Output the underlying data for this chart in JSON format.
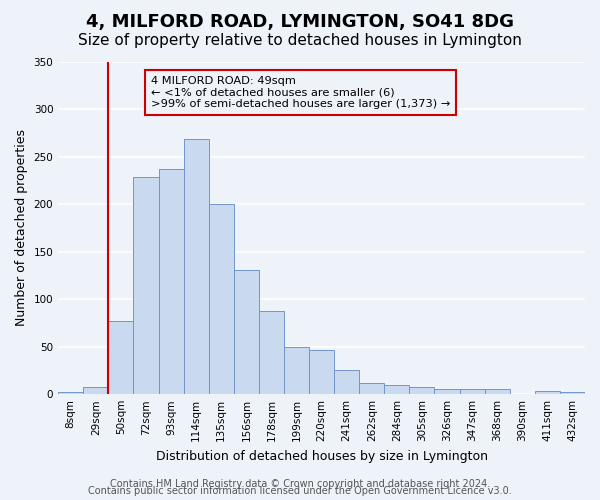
{
  "title": "4, MILFORD ROAD, LYMINGTON, SO41 8DG",
  "subtitle": "Size of property relative to detached houses in Lymington",
  "xlabel": "Distribution of detached houses by size in Lymington",
  "ylabel": "Number of detached properties",
  "bar_labels": [
    "8sqm",
    "29sqm",
    "50sqm",
    "72sqm",
    "93sqm",
    "114sqm",
    "135sqm",
    "156sqm",
    "178sqm",
    "199sqm",
    "220sqm",
    "241sqm",
    "262sqm",
    "284sqm",
    "305sqm",
    "326sqm",
    "347sqm",
    "368sqm",
    "390sqm",
    "411sqm",
    "432sqm"
  ],
  "bar_heights": [
    2,
    8,
    77,
    228,
    237,
    268,
    200,
    131,
    87,
    50,
    46,
    25,
    12,
    10,
    8,
    5,
    5,
    5,
    0,
    3,
    2
  ],
  "bar_color": "#c9d9f0",
  "bar_edge_color": "#7096c8",
  "vline_x_index": 2,
  "vline_color": "#cc0000",
  "annotation_title": "4 MILFORD ROAD: 49sqm",
  "annotation_line1": "← <1% of detached houses are smaller (6)",
  "annotation_line2": ">99% of semi-detached houses are larger (1,373) →",
  "annotation_box_edge": "#cc0000",
  "ylim": [
    0,
    350
  ],
  "yticks": [
    0,
    50,
    100,
    150,
    200,
    250,
    300,
    350
  ],
  "footer1": "Contains HM Land Registry data © Crown copyright and database right 2024.",
  "footer2": "Contains public sector information licensed under the Open Government Licence v3.0.",
  "bg_color": "#eef2f9",
  "grid_color": "#ffffff",
  "title_fontsize": 13,
  "subtitle_fontsize": 11,
  "axis_label_fontsize": 9,
  "tick_fontsize": 7.5,
  "footer_fontsize": 7
}
